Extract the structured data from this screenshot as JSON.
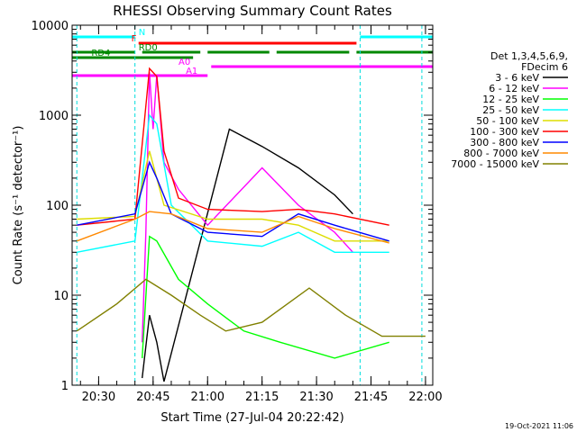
{
  "chart_data": {
    "type": "line",
    "title": "RHESSI Observing Summary Count Rates",
    "xlabel": "Start Time (27-Jul-04 20:22:42)",
    "ylabel": "Count Rate (s⁻¹ detector⁻¹)",
    "y_scale": "log",
    "ylim": [
      1,
      10000
    ],
    "xlim": [
      "20:22:42",
      "22:02:00"
    ],
    "x_ticks": [
      "20:30",
      "20:45",
      "21:00",
      "21:15",
      "21:30",
      "21:45",
      "22:00"
    ],
    "y_ticks": [
      "1",
      "10",
      "100",
      "1000",
      "10000"
    ],
    "grid": false,
    "legend_header": [
      "Det 1,3,4,5,6,9,",
      "FDecim 6"
    ],
    "legend_position": "right",
    "footer": "19-Oct-2021 11:06",
    "flag_labels": {
      "night": "N",
      "flare": "F",
      "rd0": "RD0",
      "rd4": "RD4",
      "a0": "A0",
      "a1": "A1"
    },
    "night_times": [
      "20:24",
      "20:40",
      "21:42",
      "21:59"
    ],
    "series": [
      {
        "name": "3 - 6 keV",
        "color": "#000000",
        "points": [
          [
            "20:42",
            1.2
          ],
          [
            "20:44",
            6
          ],
          [
            "20:46",
            3
          ],
          [
            "20:48",
            1.1
          ],
          [
            "21:06",
            700
          ],
          [
            "21:15",
            450
          ],
          [
            "21:25",
            260
          ],
          [
            "21:35",
            130
          ],
          [
            "21:40",
            80
          ]
        ]
      },
      {
        "name": "6 - 12 keV",
        "color": "#ff00ff",
        "points": [
          [
            "20:42",
            3
          ],
          [
            "20:43",
            50
          ],
          [
            "20:44",
            3000
          ],
          [
            "20:45",
            700
          ],
          [
            "20:46",
            2800
          ],
          [
            "20:48",
            300
          ],
          [
            "20:52",
            150
          ],
          [
            "21:00",
            60
          ],
          [
            "21:15",
            260
          ],
          [
            "21:25",
            100
          ],
          [
            "21:35",
            50
          ],
          [
            "21:40",
            30
          ]
        ]
      },
      {
        "name": "12 - 25 keV",
        "color": "#00ff00",
        "points": [
          [
            "20:42",
            2
          ],
          [
            "20:44",
            45
          ],
          [
            "20:46",
            40
          ],
          [
            "20:52",
            15
          ],
          [
            "21:00",
            8
          ],
          [
            "21:10",
            4
          ],
          [
            "21:20",
            3
          ],
          [
            "21:35",
            2
          ],
          [
            "21:50",
            3
          ]
        ]
      },
      {
        "name": "25 - 50 keV",
        "color": "#00ffff",
        "points": [
          [
            "20:24",
            30
          ],
          [
            "20:40",
            40
          ],
          [
            "20:44",
            1000
          ],
          [
            "20:46",
            800
          ],
          [
            "20:50",
            100
          ],
          [
            "21:00",
            40
          ],
          [
            "21:15",
            35
          ],
          [
            "21:25",
            50
          ],
          [
            "21:35",
            30
          ],
          [
            "21:50",
            30
          ]
        ]
      },
      {
        "name": "50 - 100 keV",
        "color": "#dddd00",
        "points": [
          [
            "20:24",
            70
          ],
          [
            "20:40",
            75
          ],
          [
            "20:44",
            400
          ],
          [
            "20:48",
            100
          ],
          [
            "21:00",
            70
          ],
          [
            "21:15",
            70
          ],
          [
            "21:25",
            60
          ],
          [
            "21:35",
            40
          ],
          [
            "21:50",
            40
          ]
        ]
      },
      {
        "name": "100 - 300 keV",
        "color": "#ff0000",
        "points": [
          [
            "20:24",
            60
          ],
          [
            "20:40",
            70
          ],
          [
            "20:44",
            3300
          ],
          [
            "20:46",
            2700
          ],
          [
            "20:48",
            400
          ],
          [
            "20:52",
            120
          ],
          [
            "21:00",
            90
          ],
          [
            "21:15",
            85
          ],
          [
            "21:25",
            90
          ],
          [
            "21:35",
            80
          ],
          [
            "21:50",
            60
          ]
        ]
      },
      {
        "name": "300 - 800 keV",
        "color": "#0000ff",
        "points": [
          [
            "20:24",
            60
          ],
          [
            "20:40",
            80
          ],
          [
            "20:44",
            300
          ],
          [
            "20:46",
            200
          ],
          [
            "20:50",
            80
          ],
          [
            "21:00",
            50
          ],
          [
            "21:15",
            45
          ],
          [
            "21:25",
            80
          ],
          [
            "21:35",
            60
          ],
          [
            "21:50",
            40
          ]
        ]
      },
      {
        "name": "800 - 7000 keV",
        "color": "#ff8800",
        "points": [
          [
            "20:24",
            40
          ],
          [
            "20:40",
            70
          ],
          [
            "20:44",
            85
          ],
          [
            "20:50",
            80
          ],
          [
            "21:00",
            55
          ],
          [
            "21:15",
            50
          ],
          [
            "21:25",
            75
          ],
          [
            "21:35",
            55
          ],
          [
            "21:50",
            38
          ]
        ]
      },
      {
        "name": "7000 - 15000 keV",
        "color": "#808000",
        "points": [
          [
            "20:24",
            4
          ],
          [
            "20:35",
            8
          ],
          [
            "20:43",
            15
          ],
          [
            "20:50",
            10
          ],
          [
            "20:58",
            6
          ],
          [
            "21:05",
            4
          ],
          [
            "21:15",
            5
          ],
          [
            "21:28",
            12
          ],
          [
            "21:38",
            6
          ],
          [
            "21:48",
            3.5
          ],
          [
            "22:00",
            3.5
          ]
        ]
      }
    ]
  }
}
